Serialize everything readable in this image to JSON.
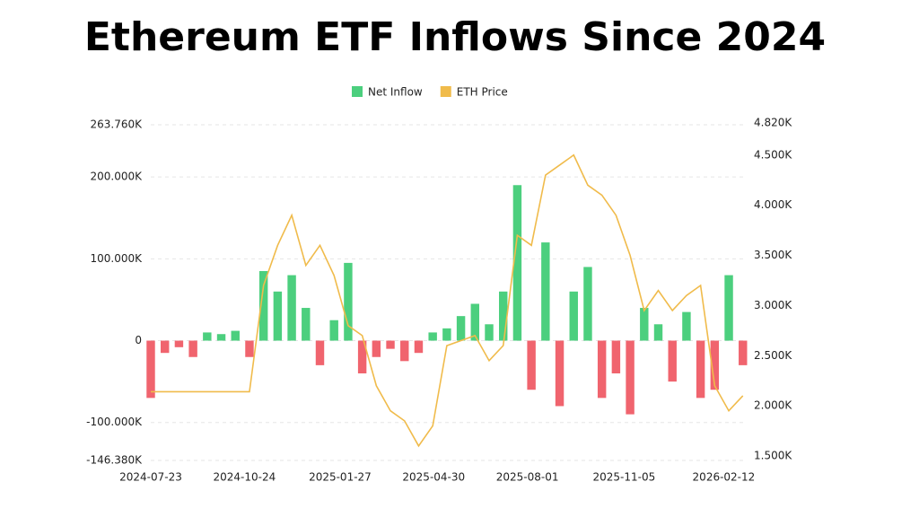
{
  "chart_data": {
    "type": "bar-line",
    "title": "Ethereum ETF Inflows Since 2024",
    "x": [
      "2024-07-23",
      "2024-08-06",
      "2024-08-20",
      "2024-09-03",
      "2024-09-17",
      "2024-10-01",
      "2024-10-15",
      "2024-10-29",
      "2024-11-12",
      "2024-11-26",
      "2024-12-10",
      "2024-12-24",
      "2025-01-07",
      "2025-01-21",
      "2025-02-04",
      "2025-02-18",
      "2025-03-04",
      "2025-03-18",
      "2025-04-01",
      "2025-04-15",
      "2025-04-29",
      "2025-05-13",
      "2025-05-27",
      "2025-06-10",
      "2025-06-24",
      "2025-07-08",
      "2025-07-22",
      "2025-08-05",
      "2025-08-19",
      "2025-09-02",
      "2025-09-16",
      "2025-09-30",
      "2025-10-14",
      "2025-10-28",
      "2025-11-11",
      "2025-11-25",
      "2025-12-09",
      "2025-12-23",
      "2026-01-06",
      "2026-01-20",
      "2026-02-03",
      "2026-02-17",
      "2026-03-03"
    ],
    "xlim": [
      "2024-07-23",
      "2026-03-05"
    ],
    "xticks": [
      "2024-07-23",
      "2024-10-24",
      "2025-01-27",
      "2025-04-30",
      "2025-08-01",
      "2025-11-05",
      "2026-02-12"
    ],
    "series": [
      {
        "name": "Net Inflow",
        "color": "#4ccf7e",
        "negative_color": "#f0646e",
        "values": [
          -70000,
          -15000,
          -8000,
          -20000,
          10000,
          8000,
          12000,
          -20000,
          85000,
          60000,
          80000,
          40000,
          -30000,
          25000,
          95000,
          -40000,
          -20000,
          -10000,
          -25000,
          -15000,
          10000,
          15000,
          30000,
          45000,
          20000,
          60000,
          190000,
          -60000,
          120000,
          -80000,
          60000,
          90000,
          -70000,
          -40000,
          -90000,
          40000,
          20000,
          -50000,
          35000,
          -70000,
          -60000,
          80000,
          -30000
        ]
      },
      {
        "name": "ETH Price",
        "color": "#f0bb4b",
        "axis": "y2",
        "values": [
          2140,
          2140,
          2140,
          2140,
          2140,
          2140,
          2140,
          2140,
          3200,
          3600,
          3900,
          3400,
          3600,
          3300,
          2800,
          2700,
          2200,
          1950,
          1850,
          1600,
          1800,
          2600,
          2650,
          2700,
          2450,
          2600,
          3700,
          3600,
          4300,
          4400,
          4500,
          4200,
          4100,
          3900,
          3500,
          2950,
          3150,
          2950,
          3100,
          3200,
          2200,
          1950,
          2100
        ]
      }
    ],
    "ylim": [
      -146380,
      263760
    ],
    "yticks": [
      {
        "value": -146380,
        "label": "-146.380K"
      },
      {
        "value": -100000,
        "label": "-100.000K"
      },
      0,
      {
        "value": 100000,
        "label": "100.000K"
      },
      {
        "value": 200000,
        "label": "200.000K"
      },
      {
        "value": 263760,
        "label": "263.760K"
      }
    ],
    "y2lim": [
      1500,
      4820
    ],
    "y2ticks": [
      {
        "value": 1500,
        "label": "1.500K"
      },
      {
        "value": 2000,
        "label": "2.000K"
      },
      {
        "value": 2500,
        "label": "2.500K"
      },
      {
        "value": 3000,
        "label": "3.000K"
      },
      {
        "value": 3500,
        "label": "3.500K"
      },
      {
        "value": 4000,
        "label": "4.000K"
      },
      {
        "value": 4500,
        "label": "4.500K"
      },
      {
        "value": 4820,
        "label": "4.820K"
      }
    ],
    "grid": true
  }
}
